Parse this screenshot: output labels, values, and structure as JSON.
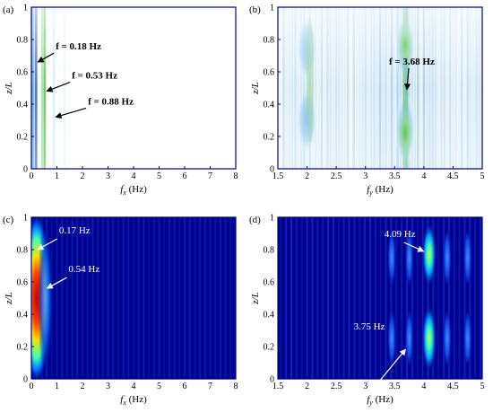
{
  "chart_data": [
    {
      "type": "heatmap",
      "panel_label": "(a)",
      "xlabel": "f_x (Hz)",
      "xlabel_main": "f",
      "xlabel_sub": "x",
      "xlabel_unit": " (Hz)",
      "ylabel": "z/L",
      "xlim": [
        0,
        8
      ],
      "ylim": [
        0,
        1
      ],
      "xticks": [
        0,
        1,
        2,
        3,
        4,
        5,
        6,
        7,
        8
      ],
      "yticks": [
        0,
        0.2,
        0.4,
        0.6,
        0.8,
        1
      ],
      "xtick_labels": [
        "0",
        "1",
        "2",
        "3",
        "4",
        "5",
        "6",
        "7",
        "8"
      ],
      "ytick_labels": [
        "0",
        "0.2",
        "0.4",
        "0.6",
        "0.8",
        "1"
      ],
      "colormap": "jet-light",
      "background_color": "#ffffff",
      "peaks_fx": [
        0.18,
        0.53,
        0.88
      ],
      "annotations": [
        {
          "text": "f = 0.18 Hz",
          "x": 0.18,
          "y": 0.66
        },
        {
          "text": "f = 0.53 Hz",
          "x": 0.53,
          "y": 0.48
        },
        {
          "text": "f = 0.88 Hz",
          "x": 0.88,
          "y": 0.32
        }
      ]
    },
    {
      "type": "heatmap",
      "panel_label": "(b)",
      "xlabel": "f_y (Hz)",
      "xlabel_main": "f",
      "xlabel_sub": "y",
      "xlabel_unit": " (Hz)",
      "ylabel": "z/L",
      "xlim": [
        1.5,
        5
      ],
      "ylim": [
        0,
        1
      ],
      "xticks": [
        1.5,
        2,
        2.5,
        3,
        3.5,
        4,
        4.5,
        5
      ],
      "yticks": [
        0,
        0.2,
        0.4,
        0.6,
        0.8,
        1
      ],
      "xtick_labels": [
        "1.5",
        "2",
        "2.5",
        "3",
        "3.5",
        "4",
        "4.5",
        "5"
      ],
      "ytick_labels": [
        "0",
        "0.2",
        "0.4",
        "0.6",
        "0.8",
        "1"
      ],
      "colormap": "jet-light",
      "background_color": "#ffffff",
      "dominant_fy": 3.68,
      "annotations": [
        {
          "text": "f = 3.68 Hz",
          "x": 3.68,
          "y": 0.49
        }
      ]
    },
    {
      "type": "heatmap",
      "panel_label": "(c)",
      "xlabel": "f_x (Hz)",
      "xlabel_main": "f",
      "xlabel_sub": "x",
      "xlabel_unit": " (Hz)",
      "ylabel": "z/L",
      "xlim": [
        0,
        8
      ],
      "ylim": [
        0,
        1
      ],
      "xticks": [
        0,
        1,
        2,
        3,
        4,
        5,
        6,
        7,
        8
      ],
      "yticks": [
        0,
        0.2,
        0.4,
        0.6,
        0.8,
        1
      ],
      "xtick_labels": [
        "0",
        "1",
        "2",
        "3",
        "4",
        "5",
        "6",
        "7",
        "8"
      ],
      "ytick_labels": [
        "0",
        "0.2",
        "0.4",
        "0.6",
        "0.8",
        "1"
      ],
      "colormap": "jet",
      "background_color": "#00008f",
      "peaks_fx": [
        0.17,
        0.54
      ],
      "annotations": [
        {
          "text": "0.17 Hz",
          "x": 0.17,
          "y": 0.8
        },
        {
          "text": "0.54 Hz",
          "x": 0.54,
          "y": 0.56
        }
      ]
    },
    {
      "type": "heatmap",
      "panel_label": "(d)",
      "xlabel": "f_y (Hz)",
      "xlabel_main": "f",
      "xlabel_sub": "y",
      "xlabel_unit": " (Hz)",
      "ylabel": "z/L",
      "xlim": [
        1.5,
        5
      ],
      "ylim": [
        0,
        1
      ],
      "xticks": [
        1.5,
        2,
        2.5,
        3,
        3.5,
        4,
        4.5,
        5
      ],
      "yticks": [
        0,
        0.2,
        0.4,
        0.6,
        0.8,
        1
      ],
      "xtick_labels": [
        "1.5",
        "2",
        "2.5",
        "3",
        "3.5",
        "4",
        "4.5",
        "5"
      ],
      "ytick_labels": [
        "0",
        "0.2",
        "0.4",
        "0.6",
        "0.8",
        "1"
      ],
      "colormap": "jet",
      "background_color": "#00008f",
      "peaks_fy": [
        3.75,
        4.09
      ],
      "annotations": [
        {
          "text": "4.09 Hz",
          "x": 4.09,
          "y": 0.8
        },
        {
          "text": "3.75 Hz",
          "x": 3.75,
          "y": 0.25
        }
      ]
    }
  ]
}
